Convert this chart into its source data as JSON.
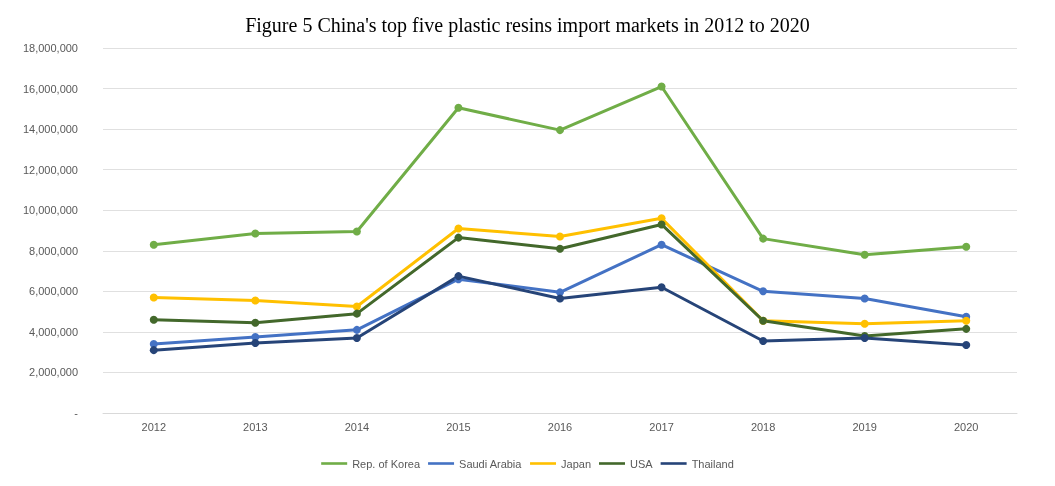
{
  "chart_data": {
    "type": "line",
    "title": "Figure 5 China's top five plastic resins import markets in 2012 to 2020",
    "categories": [
      "2012",
      "2013",
      "2014",
      "2015",
      "2016",
      "2017",
      "2018",
      "2019",
      "2020"
    ],
    "series": [
      {
        "name": "Rep. of Korea",
        "color": "#70ad47",
        "values": [
          8300000,
          8850000,
          8950000,
          15050000,
          13950000,
          16100000,
          8600000,
          7800000,
          8200000
        ]
      },
      {
        "name": "Saudi Arabia",
        "color": "#4472c4",
        "values": [
          3400000,
          3750000,
          4100000,
          6600000,
          5950000,
          8300000,
          6000000,
          5650000,
          4750000
        ]
      },
      {
        "name": "Japan",
        "color": "#ffc000",
        "values": [
          5700000,
          5550000,
          5250000,
          9100000,
          8700000,
          9600000,
          4550000,
          4400000,
          4550000
        ]
      },
      {
        "name": "USA",
        "color": "#43682b",
        "values": [
          4600000,
          4450000,
          4900000,
          8650000,
          8100000,
          9300000,
          4550000,
          3800000,
          4150000
        ]
      },
      {
        "name": "Thailand",
        "color": "#264478",
        "values": [
          3100000,
          3450000,
          3700000,
          6750000,
          5650000,
          6200000,
          3550000,
          3700000,
          3350000
        ]
      }
    ],
    "ylim": [
      0,
      18000000
    ],
    "yticks": [
      {
        "value": 0,
        "label": "-"
      },
      {
        "value": 2000000,
        "label": "2,000,000"
      },
      {
        "value": 4000000,
        "label": "4,000,000"
      },
      {
        "value": 6000000,
        "label": "6,000,000"
      },
      {
        "value": 8000000,
        "label": "8,000,000"
      },
      {
        "value": 10000000,
        "label": "10,000,000"
      },
      {
        "value": 12000000,
        "label": "12,000,000"
      },
      {
        "value": 14000000,
        "label": "14,000,000"
      },
      {
        "value": 16000000,
        "label": "16,000,000"
      },
      {
        "value": 18000000,
        "label": "18,000,000"
      }
    ],
    "grid": "y",
    "legend": "bottom",
    "marker": "circle",
    "line_style": "solid"
  }
}
